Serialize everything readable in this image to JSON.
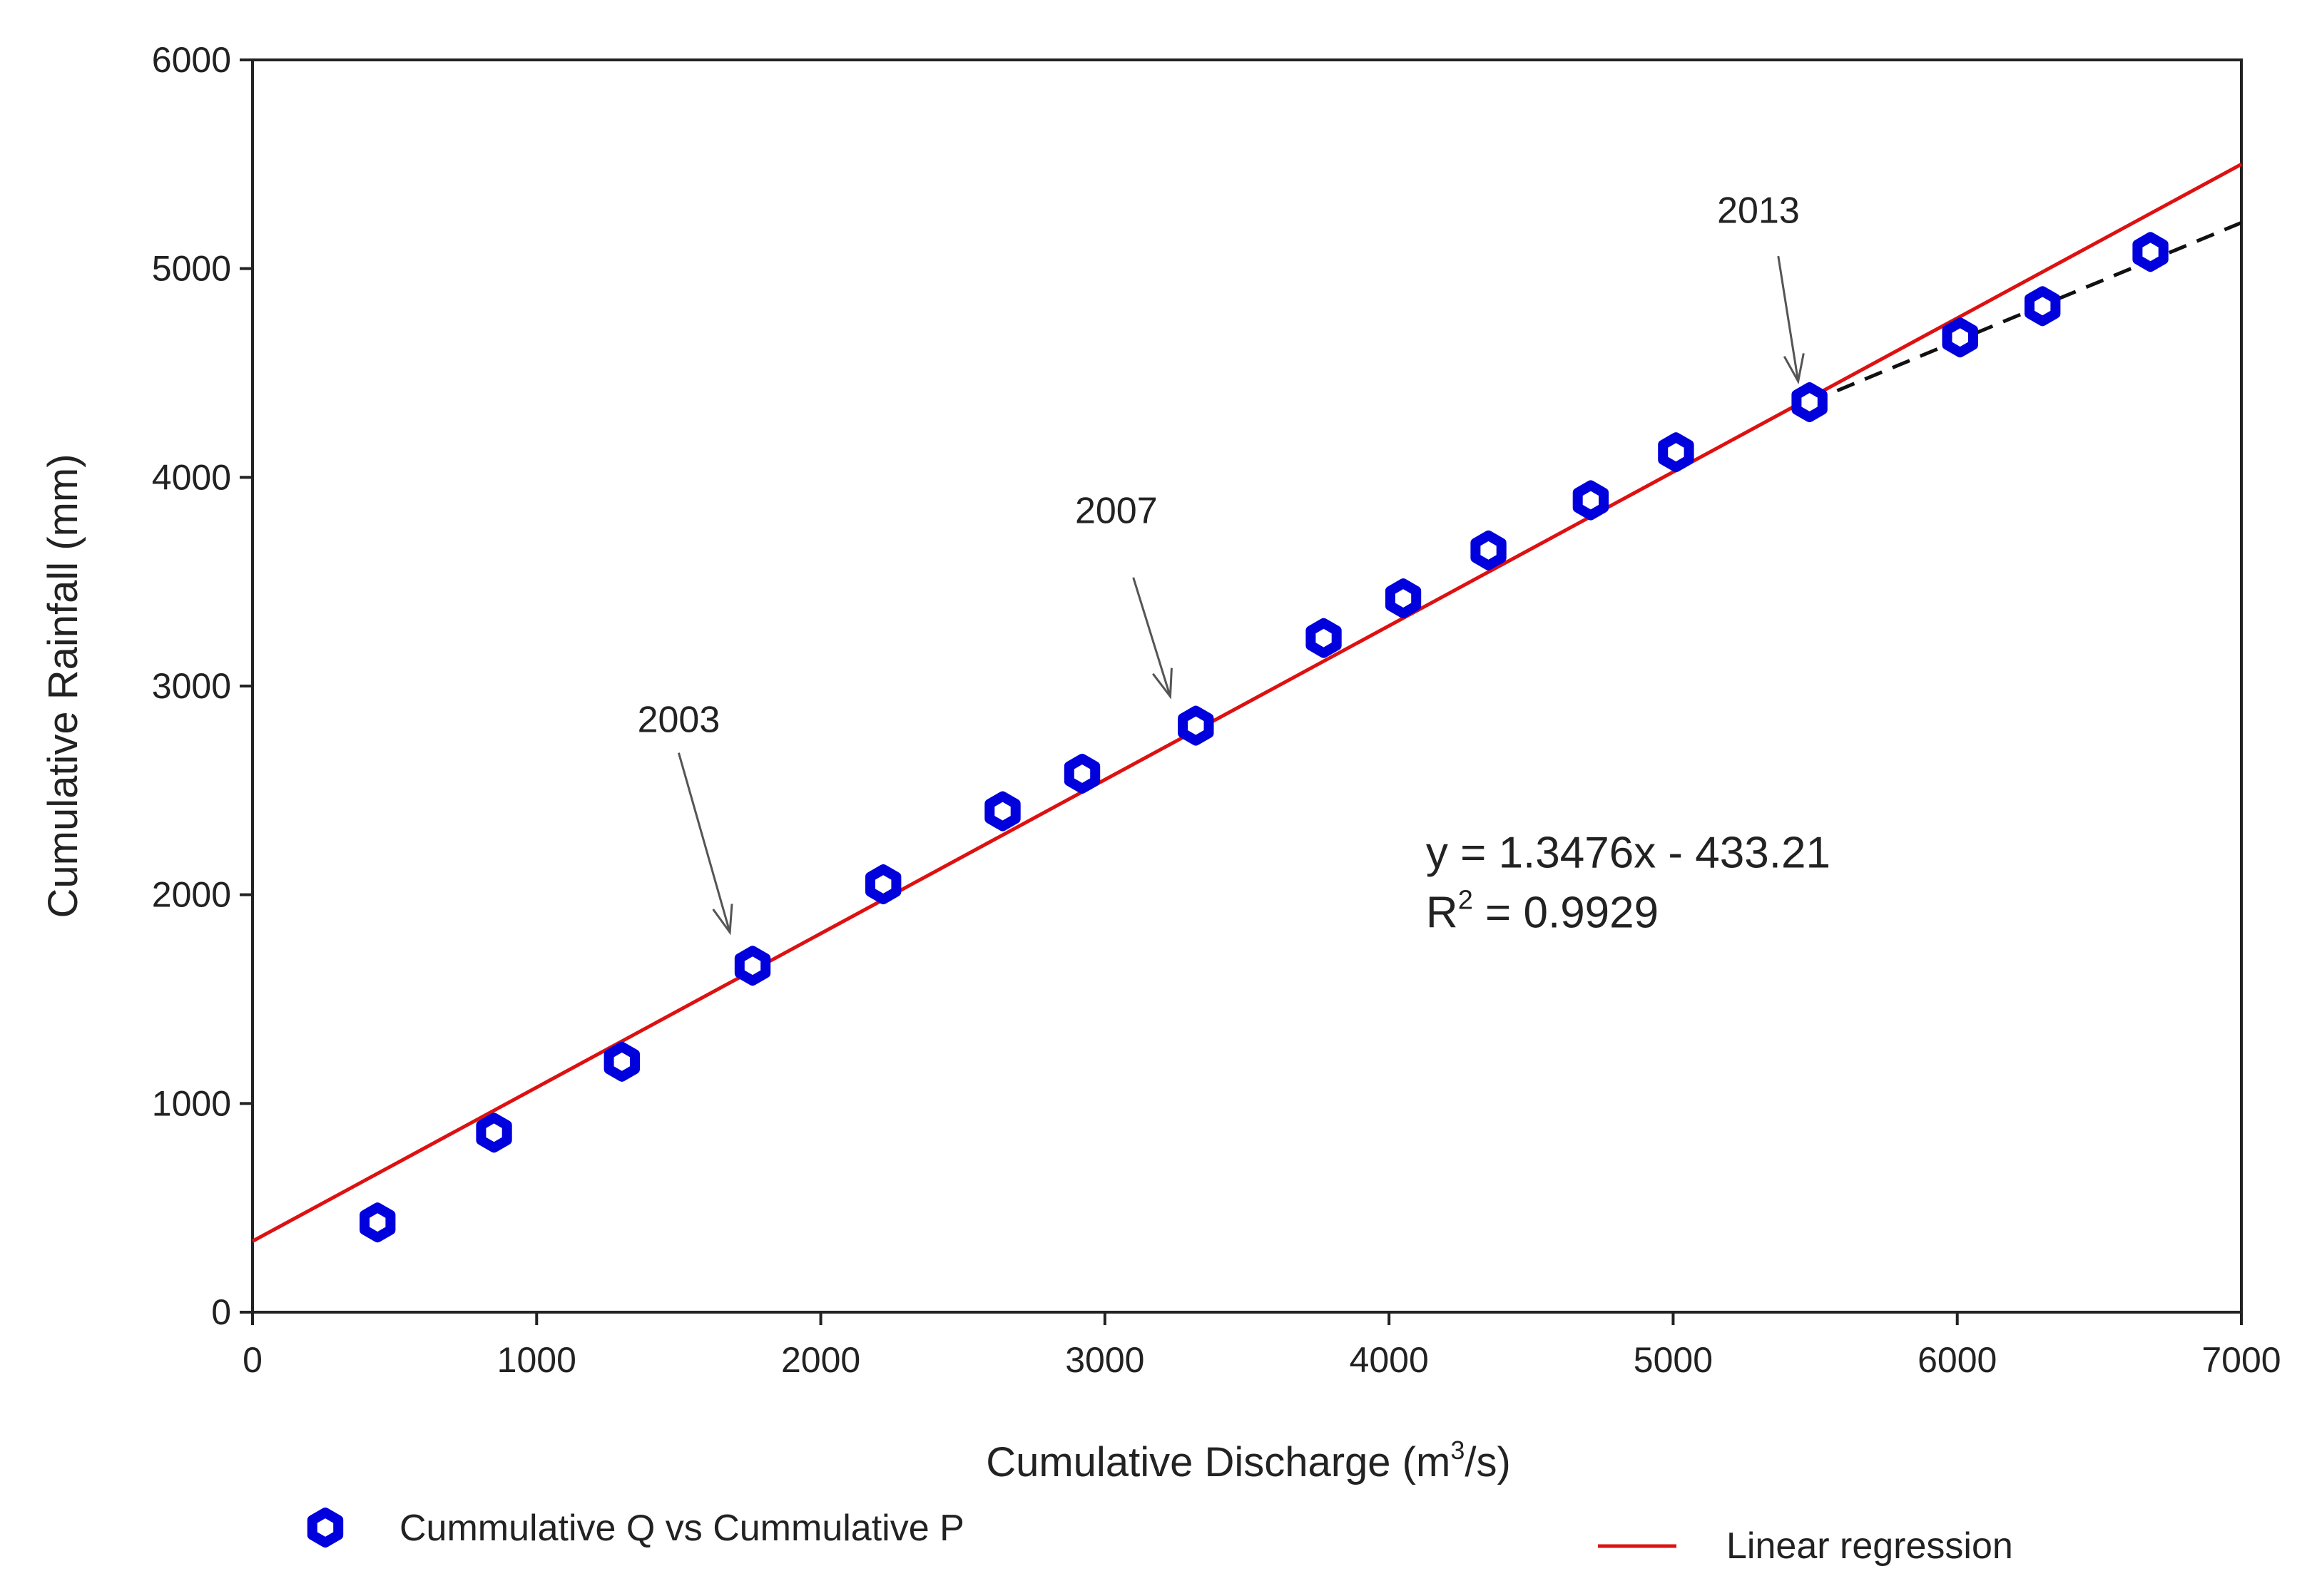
{
  "chart_data": {
    "type": "scatter",
    "title": "",
    "xlabel": "Cumulative Discharge (m",
    "xlabel_sup": "3",
    "xlabel_tail": "/s)",
    "ylabel": "Cumulative Rainfall (mm)",
    "xlim": [
      0,
      7000
    ],
    "ylim": [
      0,
      6000
    ],
    "xticks": [
      0,
      1000,
      2000,
      3000,
      4000,
      5000,
      6000,
      7000
    ],
    "yticks": [
      0,
      1000,
      2000,
      3000,
      4000,
      5000,
      6000
    ],
    "grid": false,
    "series": [
      {
        "name": "Cummulative Q vs Cummulative P",
        "marker": "hexagon-ring",
        "color": "#0000dd",
        "x": [
          440,
          850,
          1300,
          1760,
          2220,
          2640,
          2920,
          3320,
          3770,
          4050,
          4350,
          4710,
          5010,
          5480,
          6010,
          6300,
          6680
        ],
        "y": [
          430,
          860,
          1200,
          1660,
          2050,
          2400,
          2580,
          2810,
          3230,
          3420,
          3650,
          3890,
          4120,
          4360,
          4670,
          4820,
          5080
        ]
      },
      {
        "name": "Linear regression",
        "color": "#dd1111",
        "kind": "line",
        "x": [
          0,
          7000
        ],
        "y": [
          340,
          5500
        ]
      },
      {
        "name": "trend after 2013",
        "color": "#111111",
        "kind": "dashed-line",
        "x": [
          5480,
          7000
        ],
        "y": [
          4360,
          5220
        ]
      }
    ],
    "annotations": [
      {
        "text": "2003",
        "label_at": [
          1500,
          2780
        ],
        "arrow_from": [
          1500,
          2680
        ],
        "arrow_to": [
          1680,
          1820
        ]
      },
      {
        "text": "2007",
        "label_at": [
          3040,
          3780
        ],
        "arrow_from": [
          3100,
          3520
        ],
        "arrow_to": [
          3230,
          2950
        ]
      },
      {
        "text": "2013",
        "label_at": [
          5300,
          5220
        ],
        "arrow_from": [
          5370,
          5060
        ],
        "arrow_to": [
          5440,
          4460
        ]
      }
    ],
    "equation": {
      "line1": "y = 1.3476x - 433.21",
      "r_label": "R",
      "r_sup": "2",
      "r_tail": " = 0.9929",
      "anchor": [
        4130,
        2130
      ]
    },
    "legend": {
      "placement": "bottom",
      "items": [
        {
          "label": "Cummulative Q vs Cummulative P",
          "symbol": "hexagon-ring",
          "color": "#0000dd"
        },
        {
          "label": "Linear regression",
          "symbol": "line",
          "color": "#dd1111"
        }
      ]
    }
  }
}
